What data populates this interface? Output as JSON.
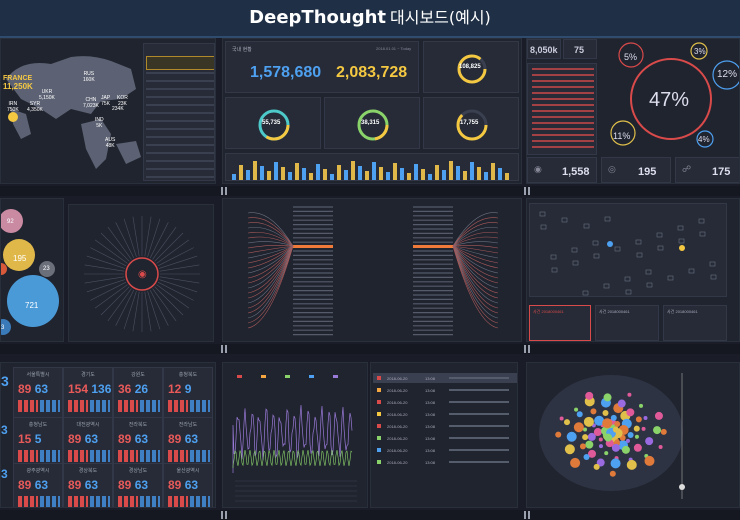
{
  "header": {
    "title": "DeepThought",
    "subtitle": "대시보드(예시)"
  },
  "map": {
    "labels": [
      {
        "name": "FRANCE",
        "value": "11,250K"
      },
      {
        "name": "RUS",
        "value": "160K"
      },
      {
        "name": "UKR",
        "value": "5,150K"
      },
      {
        "name": "CHN",
        "value": "7,023K"
      },
      {
        "name": "IRN",
        "value": "750K"
      },
      {
        "name": "SYR",
        "value": "4,350K"
      },
      {
        "name": "JAP",
        "value": "75K"
      },
      {
        "name": "KOR",
        "value": "23K"
      },
      {
        "name": "",
        "value": "234K"
      },
      {
        "name": "IND",
        "value": "5K"
      },
      {
        "name": "AUS",
        "value": "48K"
      }
    ]
  },
  "domestic": {
    "title": "국내 현황",
    "date": "2018.01.01 ~ Today",
    "value1": "1,578,680",
    "value2": "2,083,728"
  },
  "rings": {
    "top": "108,825",
    "a": "55,735",
    "b": "38,315",
    "c": "17,755"
  },
  "stats": {
    "s1": "8,050k",
    "s2": "75",
    "big_pct": "47%",
    "p1": "5%",
    "p2": "3%",
    "p3": "12%",
    "p4": "11%",
    "p5": "4%",
    "c1": "1,558",
    "c2": "195",
    "c3": "175"
  },
  "bubbles": {
    "b1": "92",
    "b2": "195",
    "b3": "23",
    "b4": "721",
    "b5": "3"
  },
  "cards": [
    {
      "label": "서울특별시",
      "red": "89",
      "blue": "63"
    },
    {
      "label": "경기도",
      "red": "154",
      "blue": "136"
    },
    {
      "label": "강원도",
      "red": "36",
      "blue": "26"
    },
    {
      "label": "충청북도",
      "red": "12",
      "blue": "9"
    },
    {
      "label": "충청남도",
      "red": "15",
      "blue": "5"
    },
    {
      "label": "대전광역시",
      "red": "89",
      "blue": "63"
    },
    {
      "label": "전라북도",
      "red": "89",
      "blue": "63"
    },
    {
      "label": "전라남도",
      "red": "89",
      "blue": "63"
    },
    {
      "label": "광주광역시",
      "red": "89",
      "blue": "63"
    },
    {
      "label": "경상북도",
      "red": "89",
      "blue": "63"
    },
    {
      "label": "경상남도",
      "red": "89",
      "blue": "63"
    },
    {
      "label": "울산광역시",
      "red": "89",
      "blue": "63"
    }
  ],
  "left_nums": {
    "a": "3",
    "b": "3",
    "c": "3"
  },
  "timeline": {
    "items": [
      {
        "date": "2018-06-20",
        "time": "13:08"
      },
      {
        "date": "2018-06-20",
        "time": "13:08"
      },
      {
        "date": "2018-06-20",
        "time": "13:08"
      },
      {
        "date": "2018-06-20",
        "time": "13:08"
      },
      {
        "date": "2018-06-20",
        "time": "13:08"
      },
      {
        "date": "2018-06-20",
        "time": "13:08"
      },
      {
        "date": "2018-06-20",
        "time": "13:08"
      },
      {
        "date": "2018-06-20",
        "time": "13:08"
      }
    ]
  },
  "net_cards": {
    "c1": "사건 2018000461",
    "c2": "사건 2018000461",
    "c3": "사건 2018000461"
  }
}
